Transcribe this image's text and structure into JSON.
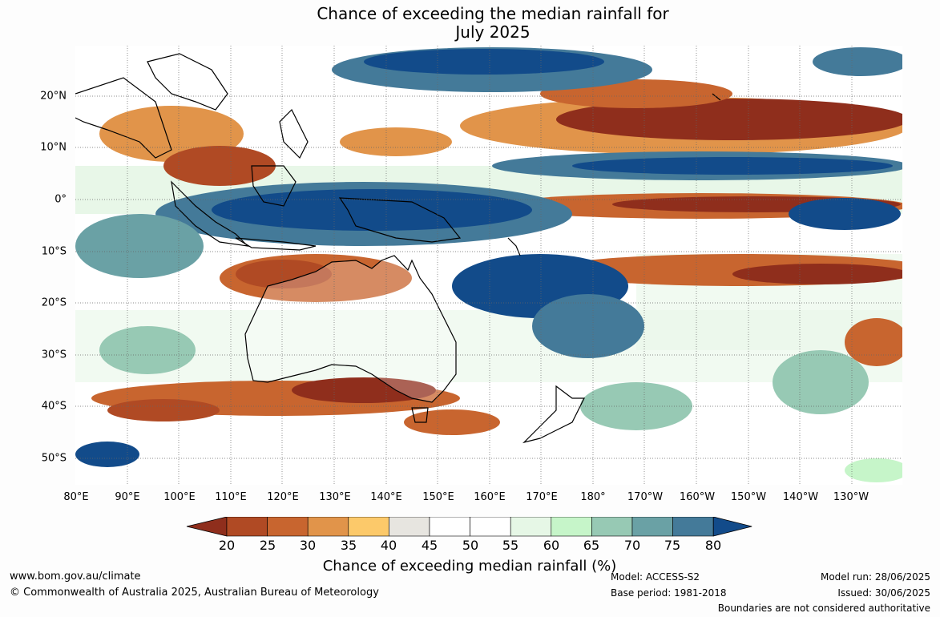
{
  "title": {
    "line1": "Chance of exceeding the median rainfall for",
    "line2": "July 2025"
  },
  "axes": {
    "lat_labels": [
      "20°N",
      "10°N",
      "0°",
      "10°S",
      "20°S",
      "30°S",
      "40°S",
      "50°S"
    ],
    "lon_labels": [
      "80°E",
      "90°E",
      "100°E",
      "110°E",
      "120°E",
      "130°E",
      "140°E",
      "150°E",
      "160°E",
      "170°E",
      "180°",
      "170°W",
      "160°W",
      "150°W",
      "140°W",
      "130°W"
    ]
  },
  "colorbar": {
    "label": "Chance of exceeding median rainfall (%)",
    "ticks": [
      "20",
      "25",
      "30",
      "35",
      "40",
      "45",
      "50",
      "55",
      "60",
      "65",
      "70",
      "75",
      "80"
    ],
    "colors": [
      "#8f2e1c",
      "#b04a24",
      "#c8652f",
      "#e1944a",
      "#fcc96a",
      "#e7e5e0",
      "#ffffff",
      "#ffffff",
      "#e6f7e6",
      "#c6f5c9",
      "#97c9b4",
      "#6aa1a5",
      "#447a99",
      "#124b8a"
    ]
  },
  "footer": {
    "url": "www.bom.gov.au/climate",
    "copyright": "© Commonwealth of Australia 2025, Australian Bureau of Meteorology",
    "model": "Model: ACCESS-S2",
    "base_period": "Base period: 1981-2018",
    "model_run": "Model run: 28/06/2025",
    "issued": "Issued: 30/06/2025",
    "disclaimer": "Boundaries are not considered authoritative"
  }
}
